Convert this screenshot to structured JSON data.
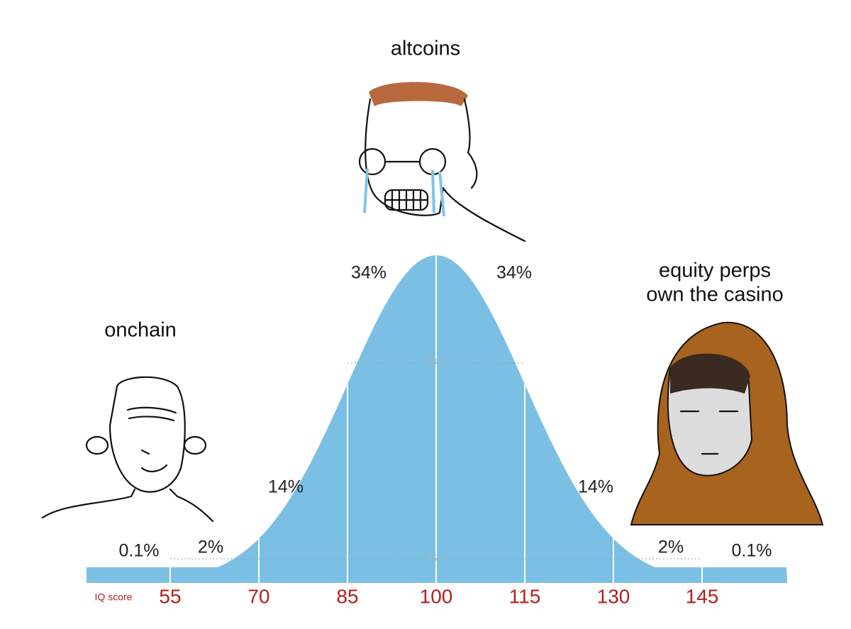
{
  "captions": {
    "top": "altcoins",
    "left": "onchain",
    "right": [
      "equity perps",
      "own the casino"
    ]
  },
  "regions": [
    "0.1%",
    "2%",
    "14%",
    "34%",
    "34%",
    "14%",
    "2%",
    "0.1%"
  ],
  "bands": [
    "68%",
    "95%"
  ],
  "axis": {
    "label": "IQ score",
    "ticks": [
      "55",
      "70",
      "85",
      "100",
      "115",
      "130",
      "145"
    ]
  }
}
